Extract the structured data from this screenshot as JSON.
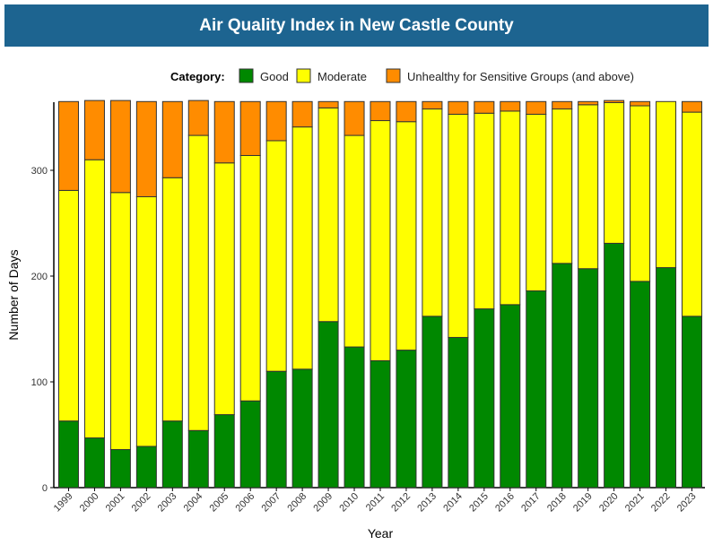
{
  "chart_data": {
    "type": "bar",
    "stacked": true,
    "title": "Air Quality Index in New Castle County",
    "xlabel": "Year",
    "ylabel": "Number of Days",
    "ylim": [
      0,
      365
    ],
    "yticks": [
      0,
      100,
      200,
      300
    ],
    "legend_title": "Category:",
    "legend_position": "top",
    "categories": [
      "1999",
      "2000",
      "2001",
      "2002",
      "2003",
      "2004",
      "2005",
      "2006",
      "2007",
      "2008",
      "2009",
      "2010",
      "2011",
      "2012",
      "2013",
      "2014",
      "2015",
      "2016",
      "2017",
      "2018",
      "2019",
      "2020",
      "2021",
      "2022",
      "2023"
    ],
    "series": [
      {
        "name": "Good",
        "color": "#008800",
        "values": [
          63,
          47,
          36,
          39,
          63,
          54,
          69,
          82,
          110,
          112,
          157,
          133,
          120,
          130,
          162,
          142,
          169,
          173,
          186,
          212,
          207,
          231,
          195,
          208,
          162
        ]
      },
      {
        "name": "Moderate",
        "color": "#ffff00",
        "values": [
          218,
          263,
          243,
          236,
          230,
          279,
          238,
          232,
          218,
          229,
          202,
          200,
          227,
          216,
          196,
          211,
          185,
          183,
          167,
          146,
          155,
          133,
          166,
          157,
          193
        ]
      },
      {
        "name": "Unhealthy for Sensitive Groups (and above)",
        "color": "#ff8c00",
        "values": [
          84,
          56,
          87,
          90,
          72,
          33,
          58,
          51,
          37,
          24,
          6,
          32,
          18,
          19,
          7,
          12,
          11,
          9,
          12,
          7,
          3,
          2,
          4,
          0,
          10
        ]
      }
    ]
  }
}
